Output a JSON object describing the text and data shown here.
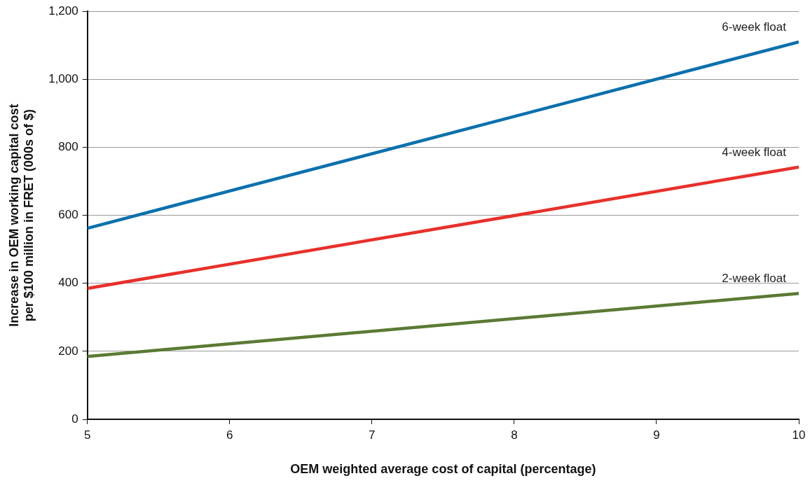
{
  "chart_data": {
    "type": "line",
    "xlabel": "OEM weighted average cost of capital (percentage)",
    "ylabel": "Increase in OEM working capital cost per $100 million in FRET (000s of $)",
    "x": [
      5,
      10
    ],
    "series": [
      {
        "name": "6-week float",
        "color": "#0a70ae",
        "values": [
          562,
          1110
        ]
      },
      {
        "name": "4-week float",
        "color": "#e8302a",
        "values": [
          385,
          742
        ]
      },
      {
        "name": "2-week float",
        "color": "#5b7a34",
        "values": [
          185,
          370
        ]
      }
    ],
    "xlim": [
      5,
      10
    ],
    "xticks": [
      5,
      6,
      7,
      8,
      9,
      10
    ],
    "ylim": [
      0,
      1200
    ],
    "yticks": [
      0,
      200,
      400,
      600,
      800,
      {
        "value": 1000,
        "label": "1,000"
      },
      {
        "value": 1200,
        "label": "1,200"
      }
    ],
    "grid": "y",
    "legend": false,
    "marker": "none",
    "line_style": "solid"
  }
}
